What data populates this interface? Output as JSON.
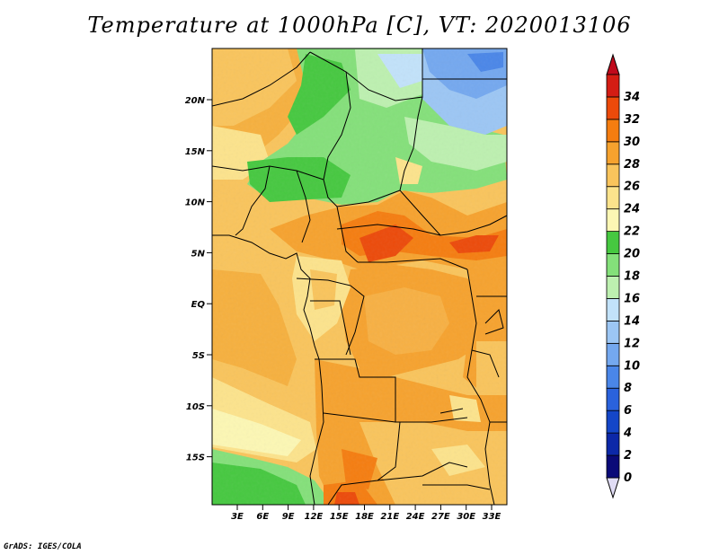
{
  "title": "Temperature at 1000hPa [C], VT: 2020013106",
  "credit": "GrADS: IGES/COLA",
  "lat_labels": [
    "20N",
    "15N",
    "10N",
    "5N",
    "EQ",
    "5S",
    "10S",
    "15S"
  ],
  "lon_labels": [
    "3E",
    "6E",
    "9E",
    "12E",
    "15E",
    "18E",
    "21E",
    "24E",
    "27E",
    "30E",
    "33E"
  ],
  "colorbar": {
    "levels": [
      "0",
      "2",
      "4",
      "6",
      "8",
      "10",
      "12",
      "14",
      "16",
      "18",
      "20",
      "22",
      "24",
      "26",
      "28",
      "30",
      "32",
      "34"
    ],
    "colors": [
      "#0a0a78",
      "#0c28a8",
      "#1446c8",
      "#2a62dc",
      "#4a86e8",
      "#74a8ef",
      "#9cc6f4",
      "#c2e2fa",
      "#bdf0b0",
      "#84e07a",
      "#46c840",
      "#fcf7b4",
      "#fce38c",
      "#f9c45c",
      "#f6a22e",
      "#f57d10",
      "#ec4a0a",
      "#d41d14"
    ],
    "under_color": "#e0dcf4",
    "over_color": "#c00a1c"
  }
}
